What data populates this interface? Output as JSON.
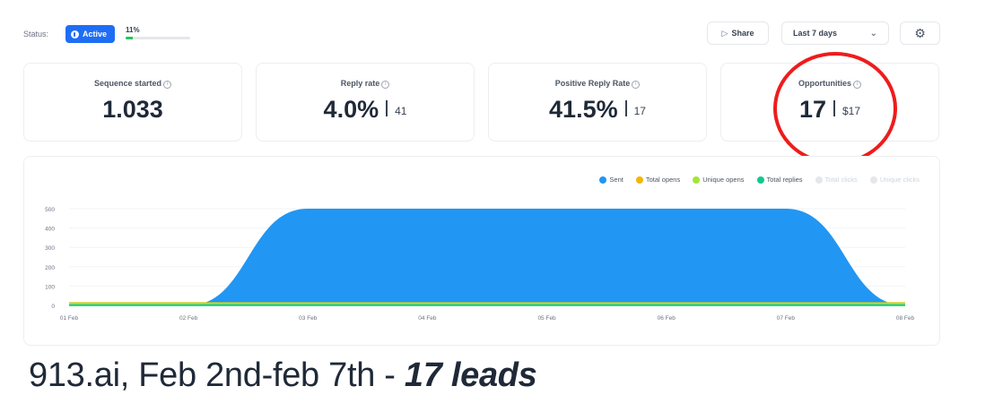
{
  "status": {
    "label": "Status:",
    "badge": "Active",
    "progress_text": "11%",
    "progress_fraction": 0.11
  },
  "toolbar": {
    "share_label": "Share",
    "range_label": "Last 7 days",
    "share_icon": "share-icon",
    "gear_icon": "gear-icon",
    "chevron_icon": "chevron-down-icon"
  },
  "cards": [
    {
      "label": "Sequence started",
      "value": "1.033",
      "sub": ""
    },
    {
      "label": "Reply rate",
      "value": "4.0%",
      "sub": "41"
    },
    {
      "label": "Positive Reply Rate",
      "value": "41.5%",
      "sub": "17"
    },
    {
      "label": "Opportunities",
      "value": "17",
      "sub": "$17"
    }
  ],
  "chart_data": {
    "type": "area",
    "x": [
      "01 Feb",
      "02 Feb",
      "03 Feb",
      "04 Feb",
      "05 Feb",
      "06 Feb",
      "07 Feb",
      "08 Feb"
    ],
    "ylim": [
      0,
      500
    ],
    "yticks": [
      0,
      100,
      200,
      300,
      400,
      500
    ],
    "legend_position": "top-right",
    "series": [
      {
        "name": "Sent",
        "color": "#2196f3",
        "values": [
          0,
          0,
          500,
          500,
          500,
          500,
          500,
          0
        ],
        "active": true
      },
      {
        "name": "Total opens",
        "color": "#f5b400",
        "values": [
          12,
          12,
          12,
          12,
          12,
          12,
          12,
          12
        ],
        "active": true
      },
      {
        "name": "Unique opens",
        "color": "#a3e635",
        "values": [
          10,
          10,
          10,
          10,
          10,
          10,
          10,
          10
        ],
        "active": true
      },
      {
        "name": "Total replies",
        "color": "#10c98f",
        "values": [
          1,
          1,
          1,
          1,
          1,
          1,
          1,
          1
        ],
        "active": true
      },
      {
        "name": "Total clicks",
        "color": "#e5e7eb",
        "values": [
          0,
          0,
          0,
          0,
          0,
          0,
          0,
          0
        ],
        "active": false
      },
      {
        "name": "Unique clicks",
        "color": "#e5e7eb",
        "values": [
          0,
          0,
          0,
          0,
          0,
          0,
          0,
          0
        ],
        "active": false
      }
    ]
  },
  "caption": {
    "text": "913.ai, Feb 2nd-feb 7th - ",
    "emphasis": "17 leads"
  },
  "colors": {
    "accent": "#1e6ef5",
    "highlight": "#ee1c1c"
  }
}
